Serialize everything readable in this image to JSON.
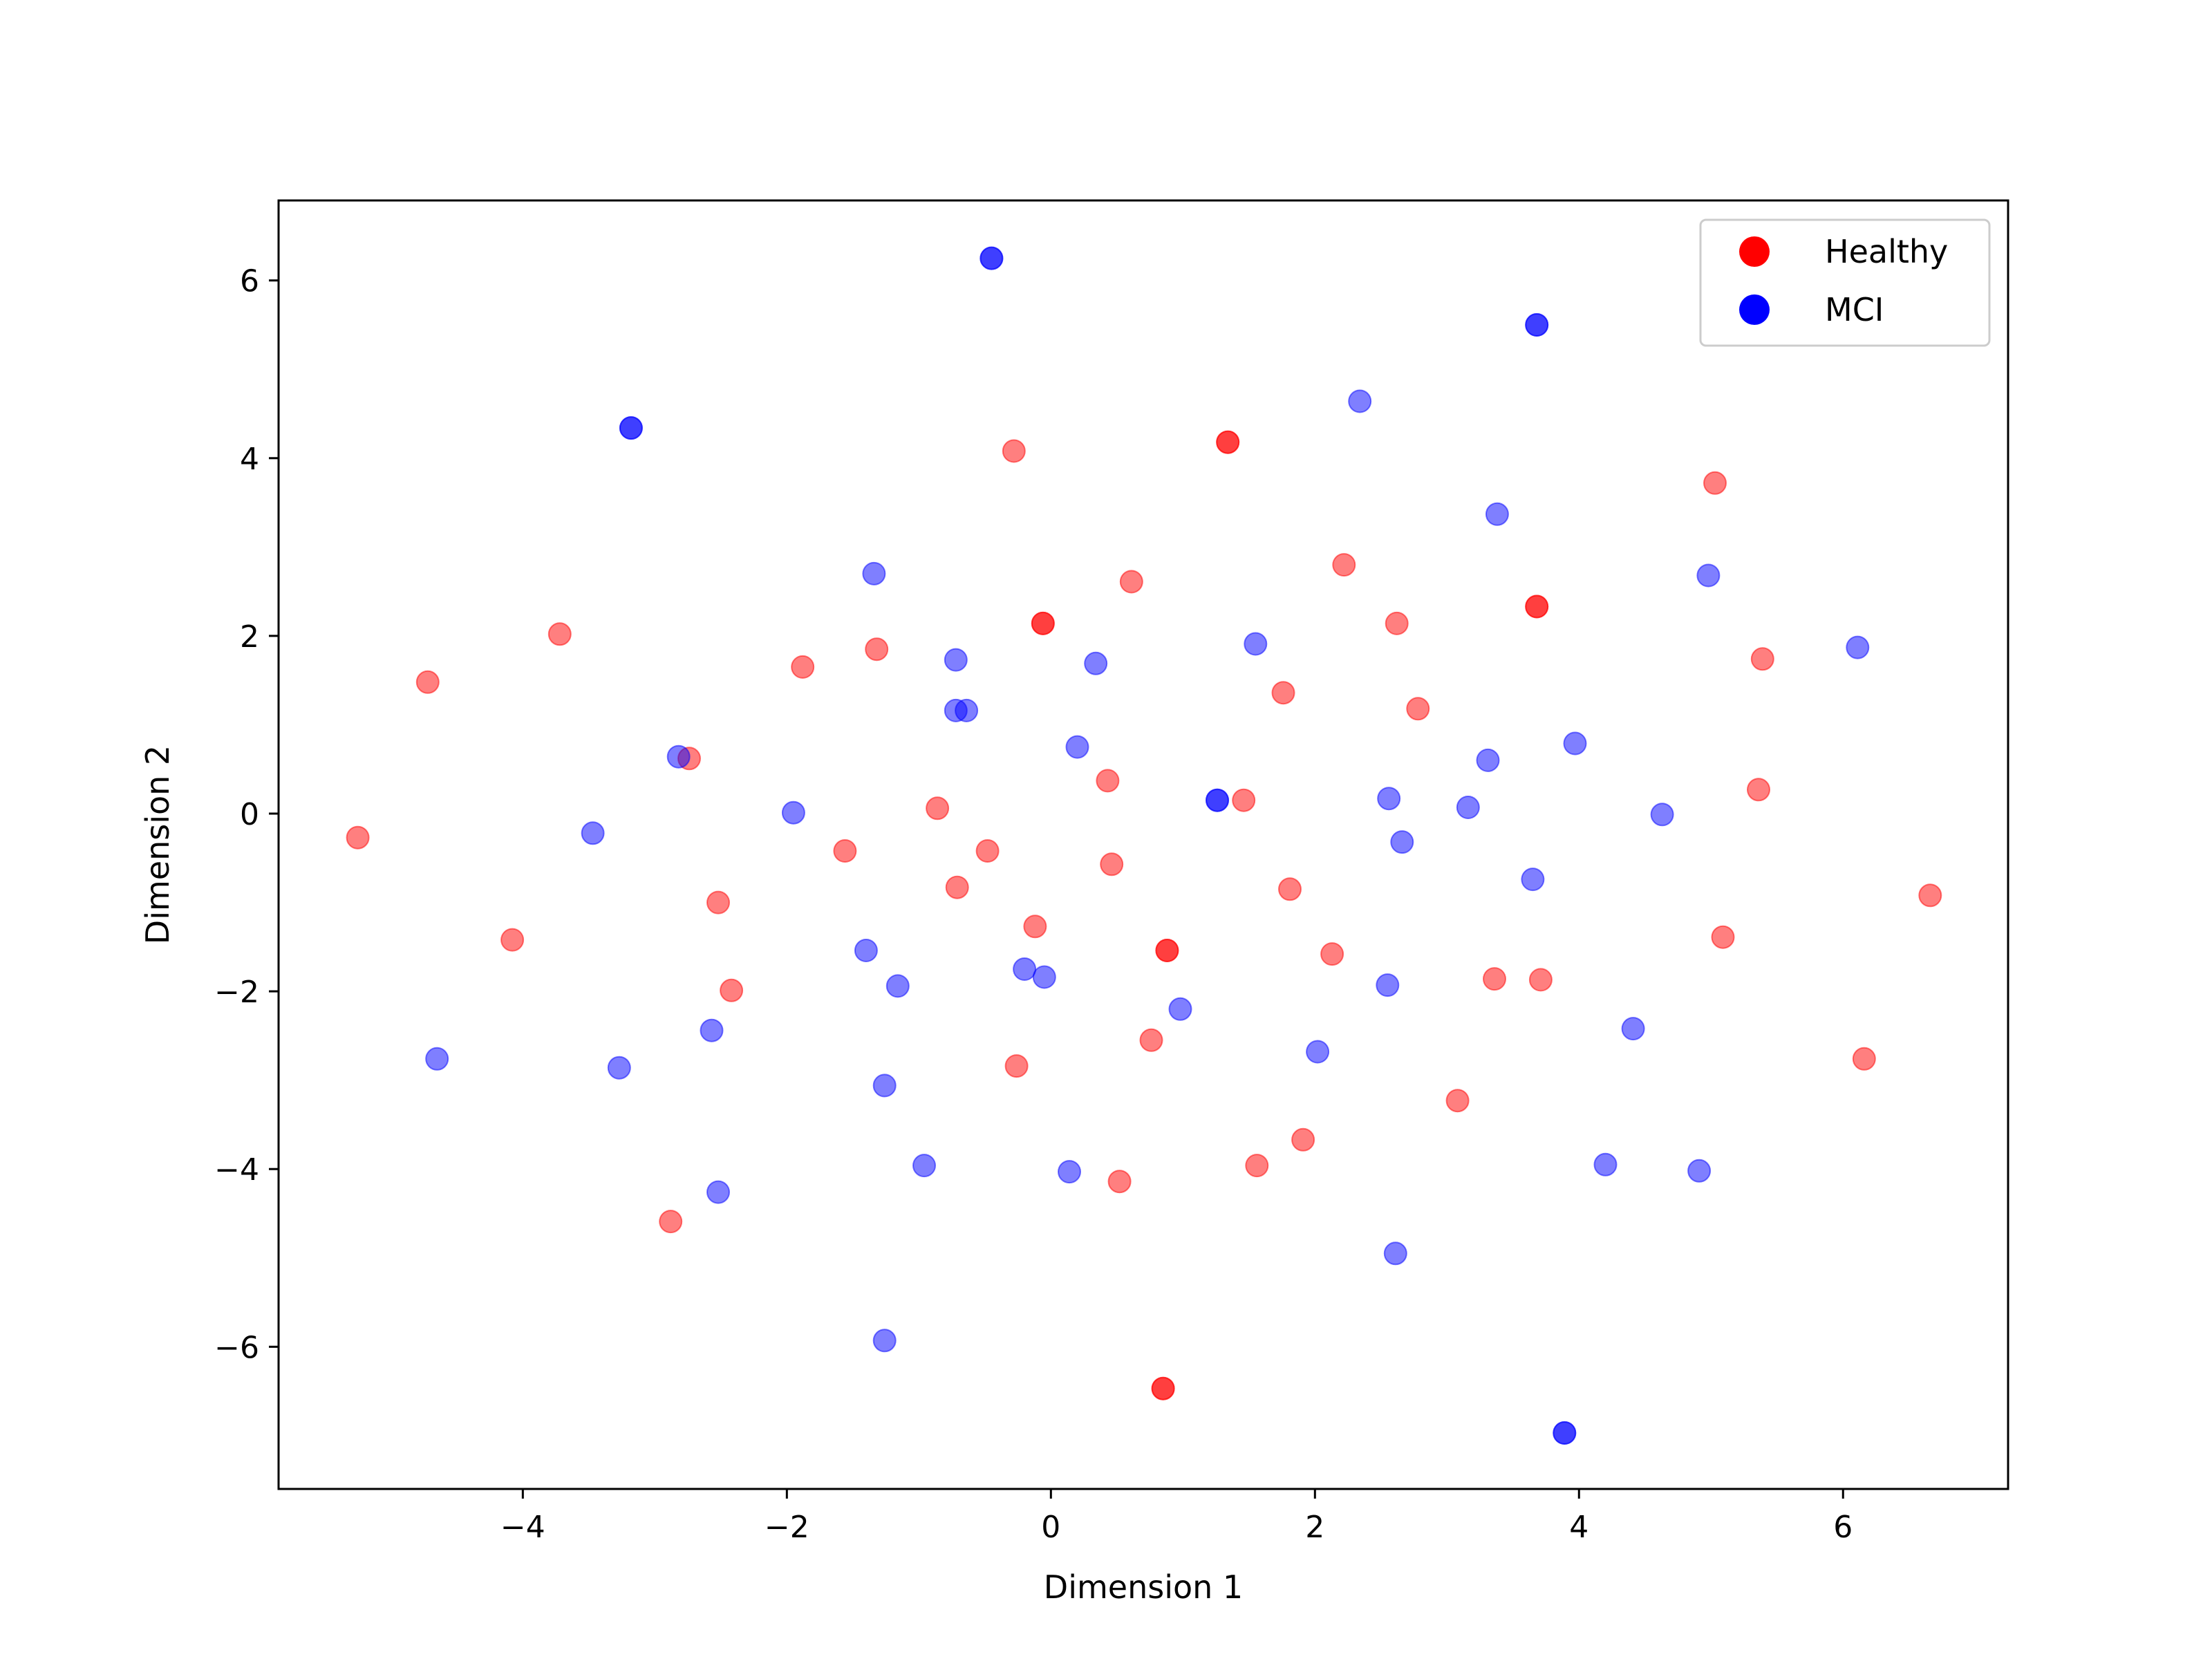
{
  "chart_data": {
    "type": "scatter",
    "title": "",
    "xlabel": "Dimension 1",
    "ylabel": "Dimension 2",
    "xlim": [
      -5.85,
      7.25
    ],
    "ylim": [
      -7.6,
      6.9
    ],
    "xticks": [
      -4,
      -2,
      0,
      2,
      4,
      6
    ],
    "yticks": [
      -6,
      -4,
      -2,
      0,
      2,
      4,
      6
    ],
    "grid": false,
    "legend_position": "top-right",
    "series": [
      {
        "name": "Healthy",
        "color": "#ff0000",
        "opacity": 0.5,
        "points": [
          [
            -5.25,
            -0.27
          ],
          [
            -4.72,
            1.48
          ],
          [
            -4.08,
            -1.42
          ],
          [
            -3.72,
            2.02
          ],
          [
            -2.74,
            0.62
          ],
          [
            -2.52,
            -1.0
          ],
          [
            -2.42,
            -1.99
          ],
          [
            -2.88,
            -4.59
          ],
          [
            -1.88,
            1.65
          ],
          [
            -1.56,
            -0.42
          ],
          [
            -1.32,
            1.85
          ],
          [
            -0.86,
            0.06
          ],
          [
            -0.71,
            -0.83
          ],
          [
            -0.48,
            -0.42
          ],
          [
            -0.28,
            4.08
          ],
          [
            -0.12,
            -1.27
          ],
          [
            -0.26,
            -2.84
          ],
          [
            -0.06,
            2.14
          ],
          [
            -0.06,
            2.14
          ],
          [
            0.43,
            0.37
          ],
          [
            0.46,
            -0.57
          ],
          [
            0.61,
            2.61
          ],
          [
            0.76,
            -2.55
          ],
          [
            0.52,
            -4.14
          ],
          [
            0.88,
            -1.54
          ],
          [
            0.88,
            -1.54
          ],
          [
            1.34,
            4.18
          ],
          [
            1.34,
            4.18
          ],
          [
            1.46,
            0.15
          ],
          [
            1.56,
            -3.96
          ],
          [
            1.76,
            1.36
          ],
          [
            1.81,
            -0.85
          ],
          [
            1.91,
            -3.67
          ],
          [
            2.13,
            -1.58
          ],
          [
            2.22,
            2.8
          ],
          [
            2.62,
            2.14
          ],
          [
            2.78,
            1.18
          ],
          [
            3.08,
            -3.23
          ],
          [
            3.36,
            -1.86
          ],
          [
            3.68,
            2.33
          ],
          [
            3.68,
            2.33
          ],
          [
            3.71,
            -1.87
          ],
          [
            5.03,
            3.72
          ],
          [
            5.09,
            -1.39
          ],
          [
            5.36,
            0.27
          ],
          [
            5.39,
            1.74
          ],
          [
            6.16,
            -2.76
          ],
          [
            6.66,
            -0.92
          ],
          [
            0.85,
            -6.47
          ],
          [
            0.85,
            -6.47
          ]
        ]
      },
      {
        "name": "MCI",
        "color": "#0000ff",
        "opacity": 0.5,
        "points": [
          [
            -4.65,
            -2.76
          ],
          [
            -3.47,
            -0.22
          ],
          [
            -3.27,
            -2.86
          ],
          [
            -3.18,
            4.34
          ],
          [
            -3.18,
            4.34
          ],
          [
            -2.82,
            0.64
          ],
          [
            -2.57,
            -2.44
          ],
          [
            -2.52,
            -4.26
          ],
          [
            -1.95,
            0.01
          ],
          [
            -1.4,
            -1.54
          ],
          [
            -1.34,
            2.7
          ],
          [
            -1.26,
            -3.06
          ],
          [
            -1.16,
            -1.94
          ],
          [
            -1.26,
            -5.93
          ],
          [
            -0.96,
            -3.96
          ],
          [
            -0.72,
            1.16
          ],
          [
            -0.72,
            1.73
          ],
          [
            -0.64,
            1.16
          ],
          [
            -0.45,
            6.25
          ],
          [
            -0.45,
            6.25
          ],
          [
            -0.2,
            -1.75
          ],
          [
            -0.05,
            -1.84
          ],
          [
            0.14,
            -4.03
          ],
          [
            0.2,
            0.75
          ],
          [
            0.34,
            1.69
          ],
          [
            0.98,
            -2.2
          ],
          [
            1.26,
            0.15
          ],
          [
            1.26,
            0.15
          ],
          [
            1.55,
            1.91
          ],
          [
            2.02,
            -2.68
          ],
          [
            2.34,
            4.64
          ],
          [
            2.55,
            -1.93
          ],
          [
            2.56,
            0.17
          ],
          [
            2.61,
            -4.95
          ],
          [
            2.66,
            -0.32
          ],
          [
            3.16,
            0.07
          ],
          [
            3.31,
            0.6
          ],
          [
            3.38,
            3.37
          ],
          [
            3.65,
            -0.74
          ],
          [
            3.68,
            5.5
          ],
          [
            3.68,
            5.5
          ],
          [
            3.89,
            -6.97
          ],
          [
            3.89,
            -6.97
          ],
          [
            3.97,
            0.79
          ],
          [
            4.2,
            -3.95
          ],
          [
            4.41,
            -2.42
          ],
          [
            4.63,
            -0.01
          ],
          [
            4.91,
            -4.02
          ],
          [
            4.98,
            2.68
          ],
          [
            6.11,
            1.87
          ]
        ]
      }
    ]
  }
}
